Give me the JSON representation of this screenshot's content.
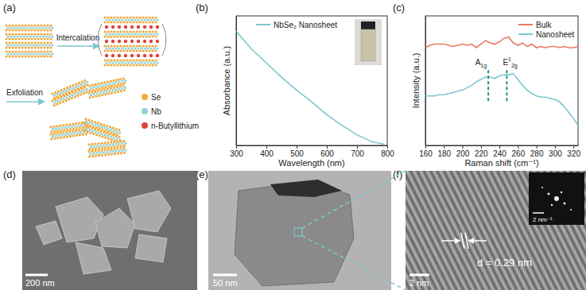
{
  "panel_labels": [
    "(a)",
    "(b)",
    "(c)",
    "(d)",
    "(e)",
    "(f)"
  ],
  "schematic": {
    "steps": [
      "Intercalation",
      "Exfoliation"
    ],
    "legend": [
      {
        "name": "Se",
        "color": "#f2a93b"
      },
      {
        "name": "Nb",
        "color": "#8fd3dc"
      },
      {
        "name": "n-Butyllithium",
        "color": "#e0433a"
      }
    ]
  },
  "chart_data": [
    {
      "type": "line",
      "x_label": "Wavelength (nm)",
      "y_label": "Absorbance (a.u.)",
      "x": [
        300,
        350,
        400,
        450,
        500,
        550,
        600,
        650,
        700,
        750,
        790
      ],
      "series": [
        {
          "name": "NbSe₂ Nanosheet",
          "color": "#7cc7cf",
          "values": [
            0.97,
            0.82,
            0.7,
            0.58,
            0.47,
            0.37,
            0.26,
            0.17,
            0.09,
            0.03,
            0.01
          ]
        }
      ],
      "xlim": [
        300,
        800
      ],
      "xticks": [
        300,
        400,
        500,
        600,
        700,
        800
      ],
      "ylim": [
        0,
        1.1
      ],
      "tick_labels": "x",
      "legend": "upper left"
    },
    {
      "type": "line",
      "x_label": "Raman shift (cm⁻¹)",
      "y_label": "Intensity (a.u.)",
      "x": [
        160,
        165,
        170,
        175,
        180,
        185,
        190,
        195,
        200,
        205,
        210,
        215,
        220,
        225,
        230,
        235,
        240,
        245,
        250,
        255,
        260,
        265,
        270,
        275,
        280,
        285,
        290,
        295,
        300,
        305,
        310,
        315,
        320,
        325
      ],
      "series": [
        {
          "name": "Bulk",
          "color": "#ea7a62",
          "values": [
            0.83,
            0.85,
            0.86,
            0.86,
            0.86,
            0.85,
            0.84,
            0.85,
            0.86,
            0.85,
            0.86,
            0.83,
            0.86,
            0.89,
            0.87,
            0.86,
            0.88,
            0.91,
            0.92,
            0.87,
            0.85,
            0.87,
            0.84,
            0.86,
            0.83,
            0.84,
            0.83,
            0.84,
            0.84,
            0.83,
            0.84,
            0.83,
            0.83,
            0.84
          ]
        },
        {
          "name": "Nanosheet",
          "color": "#7cc7cf",
          "values": [
            0.42,
            0.42,
            0.42,
            0.43,
            0.43,
            0.44,
            0.45,
            0.46,
            0.47,
            0.49,
            0.51,
            0.54,
            0.56,
            0.58,
            0.58,
            0.57,
            0.59,
            0.6,
            0.6,
            0.61,
            0.56,
            0.51,
            0.47,
            0.44,
            0.42,
            0.41,
            0.41,
            0.4,
            0.39,
            0.37,
            0.33,
            0.28,
            0.23,
            0.17
          ]
        }
      ],
      "xlim": [
        160,
        325
      ],
      "xticks": [
        160,
        180,
        200,
        220,
        240,
        260,
        280,
        300,
        320
      ],
      "ylim": [
        0,
        1.1
      ],
      "tick_labels": "x",
      "legend": "upper right",
      "annotations": [
        {
          "text": "A",
          "subscript": "1g",
          "x": 228
        },
        {
          "text": "E",
          "superscript": "1",
          "subscript": "2g",
          "x": 248
        }
      ]
    }
  ],
  "images": [
    {
      "scale_bar": "200 nm"
    },
    {
      "scale_bar": "50 nm"
    },
    {
      "scale_bar": "2 nm",
      "annotation": "d = 0.29 nm",
      "inset_scale_bar": "2 nm⁻¹"
    }
  ]
}
